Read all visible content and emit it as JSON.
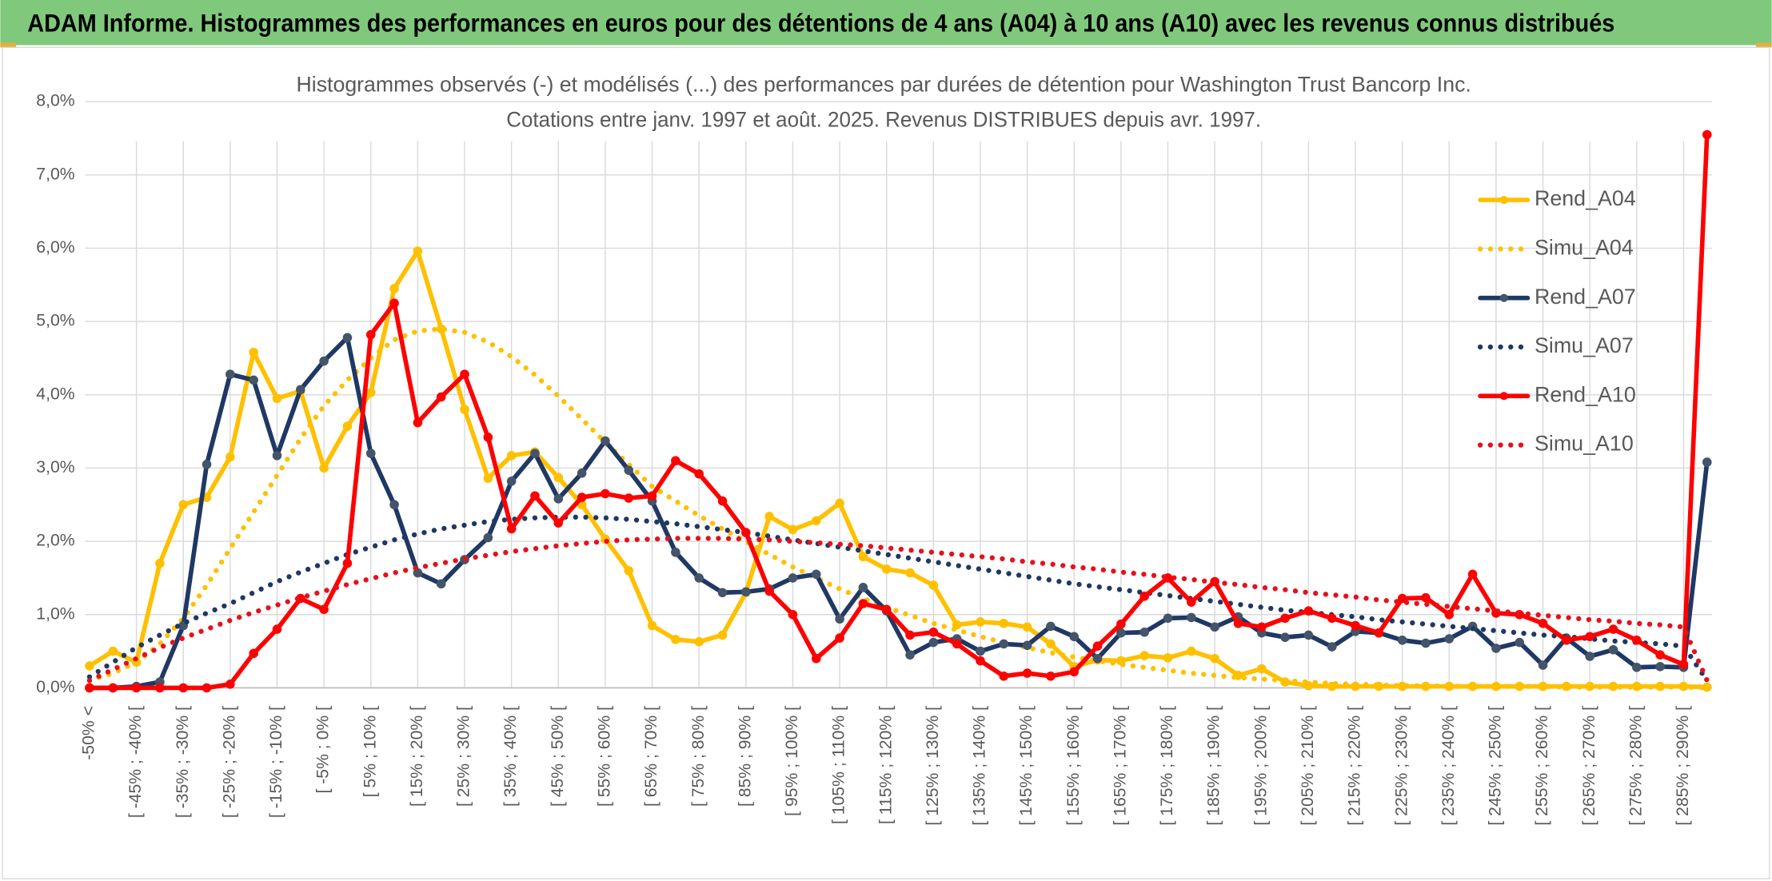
{
  "header": {
    "title": "ADAM Informe. Histogrammes des performances en euros pour des détentions de 4 ans (A04) à 10 ans (A10) avec les revenus connus distribués"
  },
  "chart_data": {
    "type": "line",
    "title": "Histogrammes observés (-) et modélisés (...) des performances par durées de détention pour Washington Trust Bancorp Inc.",
    "subtitle": "Cotations entre janv. 1997 et août. 2025. Revenus DISTRIBUES depuis avr. 1997.",
    "categories": [
      "-50% <",
      null,
      "[ -45% ; -40% [",
      null,
      "[ -35% ; -30% [",
      null,
      "[ -25% ; -20% [",
      null,
      "[ -15% ; -10% [",
      null,
      "[ -5% ; 0% [",
      null,
      "[ 5% ; 10% [",
      null,
      "[ 15% ; 20% [",
      null,
      "[ 25% ; 30% [",
      null,
      "[ 35% ; 40% [",
      null,
      "[ 45% ; 50% [",
      null,
      "[ 55% ; 60% [",
      null,
      "[ 65% ; 70% [",
      null,
      "[ 75% ; 80% [",
      null,
      "[ 85% ; 90% [",
      null,
      "[ 95% ; 100% [",
      null,
      "[ 105% ; 110% [",
      null,
      "[ 115% ; 120% [",
      null,
      "[ 125% ; 130% [",
      null,
      "[ 135% ; 140% [",
      null,
      "[ 145% ; 150% [",
      null,
      "[ 155% ; 160% [",
      null,
      "[ 165% ; 170% [",
      null,
      "[ 175% ; 180% [",
      null,
      "[ 185% ; 190% [",
      null,
      "[ 195% ; 200% [",
      null,
      "[ 205% ; 210% [",
      null,
      "[ 215% ; 220% [",
      null,
      "[ 225% ; 230% [",
      null,
      "[ 235% ; 240% [",
      null,
      "[ 245% ; 250% [",
      null,
      "[ 255% ; 260% [",
      null,
      "[ 265% ; 270% [",
      null,
      "[ 275% ; 280% [",
      null,
      "[ 285% ; 290% [",
      null
    ],
    "series": [
      {
        "name": "Rend_A04",
        "color": "#FFC000",
        "style": "solid",
        "values": [
          0.3,
          0.5,
          0.35,
          1.7,
          2.5,
          2.6,
          3.15,
          4.58,
          3.95,
          4.05,
          3.0,
          3.57,
          4.03,
          5.45,
          5.96,
          4.9,
          3.8,
          2.86,
          3.17,
          3.22,
          2.87,
          2.5,
          2.03,
          1.6,
          0.85,
          0.66,
          0.63,
          0.72,
          1.3,
          2.34,
          2.16,
          2.28,
          2.52,
          1.79,
          1.62,
          1.57,
          1.4,
          0.86,
          0.9,
          0.88,
          0.83,
          0.6,
          0.29,
          0.38,
          0.37,
          0.44,
          0.41,
          0.5,
          0.4,
          0.17,
          0.26,
          0.08,
          0.03,
          0.02,
          0.02,
          0.02,
          0.02,
          0.02,
          0.02,
          0.02,
          0.02,
          0.02,
          0.02,
          0.02,
          0.02,
          0.02,
          0.02,
          0.02,
          0.02,
          0.01
        ]
      },
      {
        "name": "Simu_A04",
        "color": "#FFC000",
        "style": "dotted",
        "values": [
          0.1,
          0.2,
          0.35,
          0.6,
          0.95,
          1.4,
          1.9,
          2.4,
          2.9,
          3.4,
          3.85,
          4.2,
          4.5,
          4.75,
          4.87,
          4.9,
          4.85,
          4.72,
          4.52,
          4.27,
          3.98,
          3.67,
          3.35,
          3.05,
          2.75,
          2.55,
          2.35,
          2.17,
          2.0,
          1.82,
          1.65,
          1.5,
          1.35,
          1.22,
          1.1,
          0.99,
          0.88,
          0.79,
          0.7,
          0.62,
          0.55,
          0.48,
          0.42,
          0.37,
          0.32,
          0.28,
          0.24,
          0.2,
          0.17,
          0.14,
          0.12,
          0.1,
          0.08,
          0.06,
          0.05,
          0.04,
          0.03,
          0.03,
          0.02,
          0.02,
          0.02,
          0.02,
          0.02,
          0.01,
          0.01,
          0.01,
          0.01,
          0.01,
          0.01,
          0.0
        ]
      },
      {
        "name": "Rend_A07",
        "color": "#1F3864",
        "style": "solid",
        "values": [
          0.0,
          0.0,
          0.02,
          0.08,
          0.85,
          3.05,
          4.28,
          4.2,
          3.17,
          4.07,
          4.46,
          4.78,
          3.2,
          2.5,
          1.57,
          1.42,
          1.75,
          2.05,
          2.82,
          3.2,
          2.58,
          2.93,
          3.37,
          2.97,
          2.55,
          1.85,
          1.5,
          1.3,
          1.31,
          1.35,
          1.5,
          1.55,
          0.94,
          1.37,
          1.05,
          0.45,
          0.62,
          0.67,
          0.5,
          0.6,
          0.58,
          0.84,
          0.7,
          0.4,
          0.75,
          0.76,
          0.95,
          0.96,
          0.83,
          0.97,
          0.75,
          0.69,
          0.72,
          0.56,
          0.77,
          0.75,
          0.65,
          0.61,
          0.67,
          0.84,
          0.54,
          0.62,
          0.31,
          0.68,
          0.43,
          0.52,
          0.28,
          0.29,
          0.28,
          3.08
        ]
      },
      {
        "name": "Simu_A07",
        "color": "#1F3864",
        "style": "dotted",
        "values": [
          0.15,
          0.35,
          0.55,
          0.72,
          0.88,
          1.02,
          1.15,
          1.3,
          1.45,
          1.58,
          1.7,
          1.82,
          1.92,
          2.02,
          2.1,
          2.17,
          2.22,
          2.27,
          2.3,
          2.32,
          2.33,
          2.33,
          2.32,
          2.3,
          2.27,
          2.24,
          2.2,
          2.16,
          2.12,
          2.07,
          2.02,
          1.97,
          1.92,
          1.87,
          1.82,
          1.77,
          1.72,
          1.67,
          1.62,
          1.57,
          1.52,
          1.47,
          1.42,
          1.38,
          1.34,
          1.3,
          1.26,
          1.22,
          1.18,
          1.14,
          1.1,
          1.06,
          1.03,
          1.0,
          0.97,
          0.93,
          0.9,
          0.87,
          0.84,
          0.81,
          0.78,
          0.75,
          0.72,
          0.7,
          0.67,
          0.64,
          0.62,
          0.6,
          0.57,
          0.1
        ]
      },
      {
        "name": "Rend_A10",
        "color": "#FF0000",
        "style": "solid",
        "values": [
          0,
          0,
          0,
          0,
          0,
          0,
          0.05,
          0.47,
          0.8,
          1.22,
          1.07,
          1.7,
          4.82,
          5.25,
          3.62,
          3.97,
          4.28,
          3.42,
          2.17,
          2.62,
          2.25,
          2.6,
          2.65,
          2.59,
          2.62,
          3.1,
          2.92,
          2.55,
          2.12,
          1.32,
          1.0,
          0.4,
          0.68,
          1.15,
          1.07,
          0.72,
          0.76,
          0.6,
          0.37,
          0.16,
          0.2,
          0.16,
          0.22,
          0.57,
          0.87,
          1.25,
          1.5,
          1.17,
          1.45,
          0.88,
          0.83,
          0.95,
          1.05,
          0.95,
          0.85,
          0.75,
          1.22,
          1.23,
          1.0,
          1.55,
          1.02,
          1.0,
          0.88,
          0.65,
          0.7,
          0.8,
          0.65,
          0.45,
          0.32,
          7.55
        ]
      },
      {
        "name": "Simu_A10",
        "color": "#E8101C",
        "style": "dotted",
        "values": [
          0.1,
          0.25,
          0.4,
          0.55,
          0.68,
          0.8,
          0.92,
          1.03,
          1.13,
          1.23,
          1.32,
          1.41,
          1.49,
          1.57,
          1.64,
          1.7,
          1.76,
          1.81,
          1.86,
          1.9,
          1.94,
          1.97,
          2.0,
          2.02,
          2.03,
          2.04,
          2.04,
          2.04,
          2.03,
          2.02,
          2.0,
          1.98,
          1.96,
          1.94,
          1.91,
          1.88,
          1.85,
          1.82,
          1.79,
          1.76,
          1.72,
          1.69,
          1.65,
          1.62,
          1.58,
          1.55,
          1.51,
          1.48,
          1.44,
          1.41,
          1.37,
          1.34,
          1.3,
          1.27,
          1.24,
          1.2,
          1.17,
          1.14,
          1.11,
          1.08,
          1.05,
          1.02,
          0.99,
          0.96,
          0.93,
          0.91,
          0.88,
          0.86,
          0.83,
          0.1
        ]
      }
    ],
    "ylim": [
      0,
      8
    ],
    "yticks": [
      {
        "value": 0,
        "label": "0,0%"
      },
      {
        "value": 1,
        "label": "1,0%"
      },
      {
        "value": 2,
        "label": "2,0%"
      },
      {
        "value": 3,
        "label": "3,0%"
      },
      {
        "value": 4,
        "label": "4,0%"
      },
      {
        "value": 5,
        "label": "5,0%"
      },
      {
        "value": 6,
        "label": "6,0%"
      },
      {
        "value": 7,
        "label": "7,0%"
      },
      {
        "value": 8,
        "label": "8,0%"
      }
    ],
    "grid": true,
    "legend": "right"
  }
}
